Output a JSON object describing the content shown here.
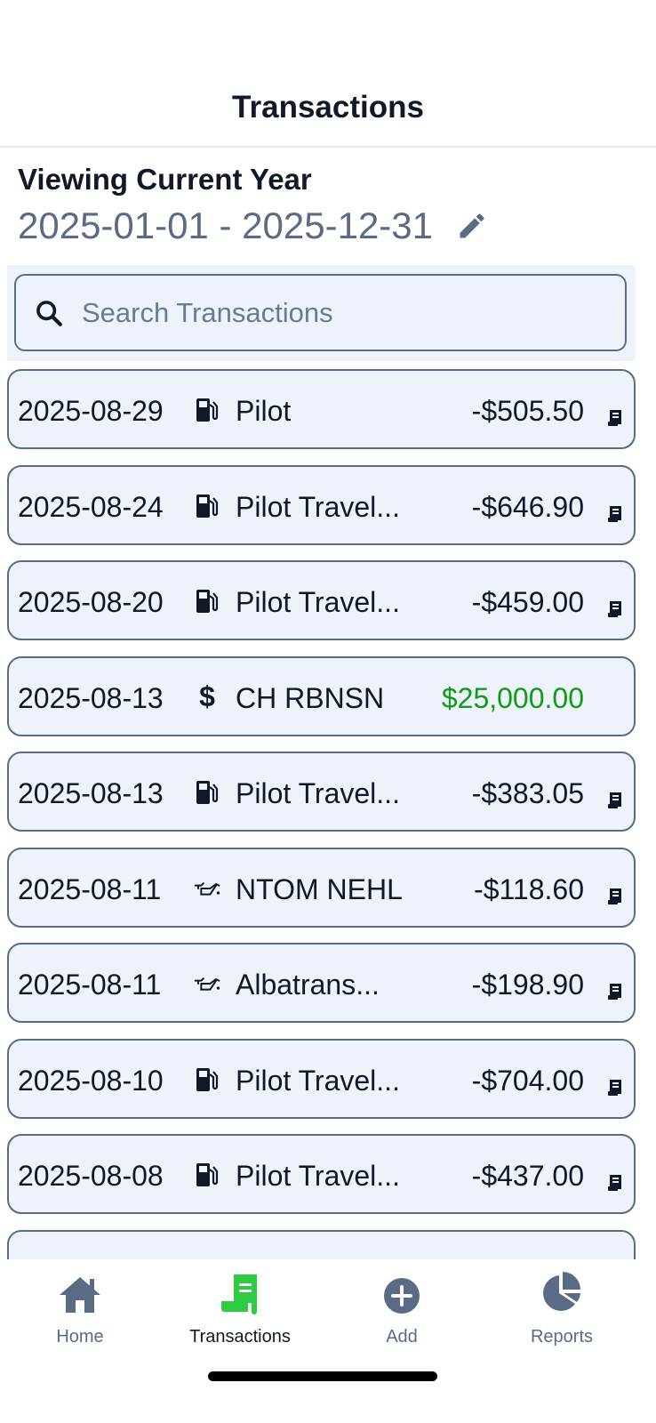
{
  "header": {
    "title": "Transactions"
  },
  "period": {
    "label": "Viewing Current Year",
    "range": "2025-01-01 - 2025-12-31"
  },
  "search": {
    "placeholder": "Search Transactions",
    "value": ""
  },
  "colors": {
    "accent": "#2ecc40",
    "positive": "#0f9d18",
    "muted": "#5b6b85",
    "row_bg": "#edf2fb"
  },
  "transactions": [
    {
      "date": "2025-08-29",
      "icon": "fuel-pump-icon",
      "name": "Pilot",
      "amount": "-$505.50",
      "receipt": true
    },
    {
      "date": "2025-08-24",
      "icon": "fuel-pump-icon",
      "name": "Pilot Travel...",
      "amount": "-$646.90",
      "receipt": true
    },
    {
      "date": "2025-08-20",
      "icon": "fuel-pump-icon",
      "name": "Pilot Travel...",
      "amount": "-$459.00",
      "receipt": true
    },
    {
      "date": "2025-08-13",
      "icon": "dollar-icon",
      "name": "CH RBNSN",
      "amount": "$25,000.00",
      "receipt": false
    },
    {
      "date": "2025-08-13",
      "icon": "fuel-pump-icon",
      "name": "Pilot Travel...",
      "amount": "-$383.05",
      "receipt": true
    },
    {
      "date": "2025-08-11",
      "icon": "oil-can-icon",
      "name": "NTOM NEHL",
      "amount": "-$118.60",
      "receipt": true
    },
    {
      "date": "2025-08-11",
      "icon": "oil-can-icon",
      "name": "Albatrans...",
      "amount": "-$198.90",
      "receipt": true
    },
    {
      "date": "2025-08-10",
      "icon": "fuel-pump-icon",
      "name": "Pilot Travel...",
      "amount": "-$704.00",
      "receipt": true
    },
    {
      "date": "2025-08-08",
      "icon": "fuel-pump-icon",
      "name": "Pilot Travel...",
      "amount": "-$437.00",
      "receipt": true
    }
  ],
  "tabs": [
    {
      "label": "Home",
      "icon": "home-icon"
    },
    {
      "label": "Transactions",
      "icon": "receipt-icon",
      "active": true
    },
    {
      "label": "Add",
      "icon": "plus-circle-icon"
    },
    {
      "label": "Reports",
      "icon": "pie-chart-icon"
    }
  ]
}
